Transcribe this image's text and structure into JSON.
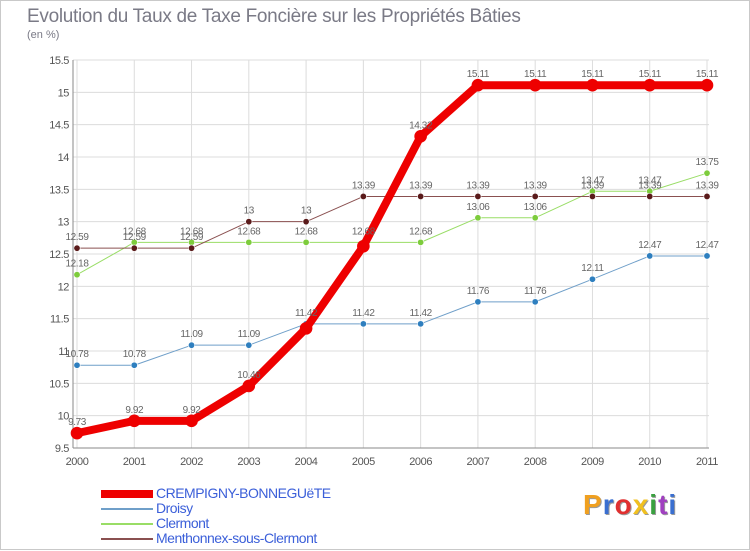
{
  "header": {
    "title": "Evolution du Taux de Taxe Foncière sur les Propriétés Bâties",
    "unit": "(en %)"
  },
  "brand": {
    "logo_text": "Proxiti"
  },
  "colors": {
    "grid": "#dcdcdc",
    "axis": "#8a8a8a",
    "tick_text": "#555555",
    "logo_letters": [
      "#f0a020",
      "#3a6fd0",
      "#e03030",
      "#f0c020",
      "#3aa040",
      "#a040c0",
      "#3a6fd0"
    ]
  },
  "chart_data": {
    "type": "line",
    "title": "Evolution du Taux de Taxe Foncière sur les Propriétés Bâties",
    "ylabel": "(en %)",
    "xlabel": "",
    "x": [
      "2000",
      "2001",
      "2002",
      "2003",
      "2004",
      "2005",
      "2006",
      "2007",
      "2008",
      "2009",
      "2010",
      "2011"
    ],
    "ylim": [
      9.5,
      15.5
    ],
    "yticks": [
      9.5,
      10,
      10.5,
      11,
      11.5,
      12,
      12.5,
      13,
      13.5,
      14,
      14.5,
      15,
      15.5
    ],
    "ytick_labels": [
      "9.5",
      "10",
      "10.5",
      "11",
      "11.5",
      "12",
      "12.5",
      "13",
      "13.5",
      "14",
      "14.5",
      "15",
      "15.5"
    ],
    "grid": true,
    "legend_position": "bottom-left",
    "series": [
      {
        "name": "CREMPIGNY-BONNEGUëTE",
        "color": "#ee0000",
        "line_width": 8,
        "marker_color": "#ee0000",
        "values": [
          9.73,
          9.92,
          9.92,
          10.46,
          11.35,
          12.62,
          14.32,
          15.11,
          15.11,
          15.11,
          15.11,
          15.11
        ],
        "labels": [
          "9.73",
          "9.92",
          "9.92",
          "10.46",
          "",
          "",
          "14.32",
          "15.11",
          "15.11",
          "15.11",
          "15.11",
          "15.11"
        ]
      },
      {
        "name": "Droisy",
        "color": "#6f9fc9",
        "line_width": 1,
        "marker_color": "#2e7fbf",
        "values": [
          10.78,
          10.78,
          11.09,
          11.09,
          11.42,
          11.42,
          11.42,
          11.76,
          11.76,
          12.11,
          12.47,
          12.47
        ],
        "labels": [
          "10.78",
          "10.78",
          "11.09",
          "11.09",
          "11.42",
          "11.42",
          "11.42",
          "11.76",
          "11.76",
          "12.11",
          "12.47",
          "12.47"
        ]
      },
      {
        "name": "Clermont",
        "color": "#99dd66",
        "line_width": 1,
        "marker_color": "#7dcc3c",
        "values": [
          12.18,
          12.68,
          12.68,
          12.68,
          12.68,
          12.68,
          12.68,
          13.06,
          13.06,
          13.47,
          13.47,
          13.75
        ],
        "labels": [
          "12.18",
          "12.68",
          "12.68",
          "12.68",
          "12.68",
          "12.68",
          "12.68",
          "13.06",
          "13.06",
          "13.47",
          "13.47",
          "13.75"
        ]
      },
      {
        "name": "Menthonnex-sous-Clermont",
        "color": "#8a5050",
        "line_width": 1,
        "marker_color": "#5a1a1a",
        "values": [
          12.59,
          12.59,
          12.59,
          13,
          13,
          13.39,
          13.39,
          13.39,
          13.39,
          13.39,
          13.39,
          13.39
        ],
        "labels": [
          "12.59",
          "12.59",
          "12.59",
          "13",
          "13",
          "13.39",
          "13.39",
          "13.39",
          "13.39",
          "13.39",
          "13.39",
          "13.39"
        ]
      }
    ]
  }
}
